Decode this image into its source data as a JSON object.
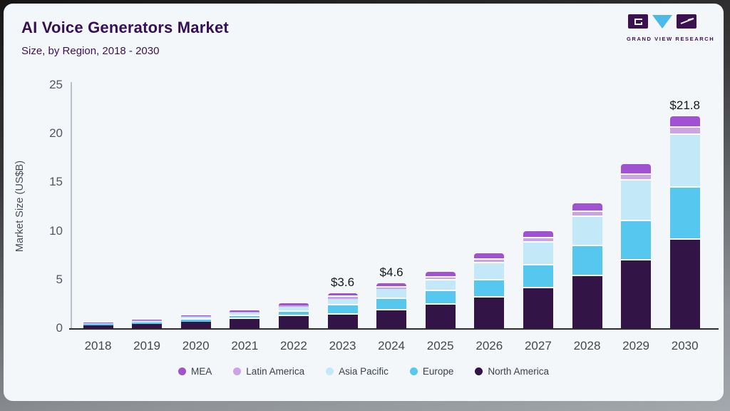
{
  "header": {
    "title": "AI Voice Generators Market",
    "subtitle": "Size, by Region, 2018 - 2030"
  },
  "logo": {
    "caption": "GRAND VIEW RESEARCH",
    "mark_colors": {
      "block": "#3b1152",
      "triangle": "#4cb9e8"
    }
  },
  "chart_data": {
    "type": "bar",
    "stacked": true,
    "title": "AI Voice Generators Market",
    "subtitle": "Size, by Region, 2018 - 2030",
    "xlabel": "",
    "ylabel": "Market Size (US$B)",
    "ylim": [
      0,
      25
    ],
    "yticks": [
      0,
      5,
      10,
      15,
      20,
      25
    ],
    "grid": false,
    "legend_position": "bottom",
    "categories": [
      "2018",
      "2019",
      "2020",
      "2021",
      "2022",
      "2023",
      "2024",
      "2025",
      "2026",
      "2027",
      "2028",
      "2029",
      "2030"
    ],
    "series": [
      {
        "name": "North America",
        "color": "#321447",
        "values": [
          0.3,
          0.44,
          0.68,
          0.93,
          1.22,
          1.4,
          1.82,
          2.4,
          3.14,
          4.07,
          5.34,
          6.99,
          9.1
        ]
      },
      {
        "name": "Europe",
        "color": "#56c8f0",
        "values": [
          0.11,
          0.15,
          0.21,
          0.3,
          0.48,
          0.94,
          1.18,
          1.4,
          1.79,
          2.38,
          3.06,
          4.04,
          5.35
        ]
      },
      {
        "name": "Asia Pacific",
        "color": "#c3e9f9",
        "values": [
          0.13,
          0.18,
          0.25,
          0.38,
          0.5,
          0.69,
          1.01,
          1.13,
          1.71,
          2.38,
          3.06,
          4.12,
          5.4
        ]
      },
      {
        "name": "Latin America",
        "color": "#cba4e8",
        "values": [
          0.03,
          0.04,
          0.07,
          0.1,
          0.13,
          0.17,
          0.18,
          0.29,
          0.37,
          0.4,
          0.52,
          0.6,
          0.78
        ]
      },
      {
        "name": "MEA",
        "color": "#a052d2",
        "values": [
          0.04,
          0.06,
          0.1,
          0.15,
          0.21,
          0.37,
          0.44,
          0.6,
          0.66,
          0.74,
          0.88,
          1.1,
          1.17
        ]
      }
    ],
    "annotations": [
      {
        "category": "2023",
        "label": "$3.6"
      },
      {
        "category": "2024",
        "label": "$4.6"
      },
      {
        "category": "2030",
        "label": "$21.8"
      }
    ]
  }
}
